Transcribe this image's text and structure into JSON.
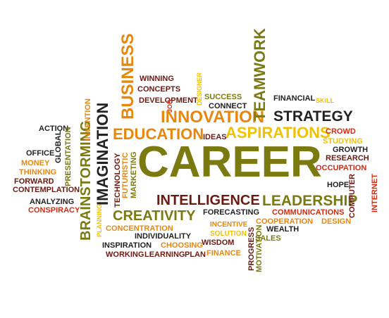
{
  "colors": {
    "olive": "#7a7a10",
    "maroon": "#6b1a12",
    "orange": "#e8870e",
    "red": "#d42a10",
    "dark": "#222222",
    "gold": "#f2c200",
    "lime": "#a7b826",
    "yellowgreen": "#c6cf2e",
    "lightorange": "#f0a030"
  },
  "words": [
    {
      "text": "CAREER",
      "color": "olive"
    },
    {
      "text": "INNOVATION",
      "color": "orange"
    },
    {
      "text": "STRATEGY",
      "color": "dark"
    },
    {
      "text": "EDUCATION",
      "color": "orange"
    },
    {
      "text": "ASPIRATIONS",
      "color": "gold"
    },
    {
      "text": "IDEAS",
      "color": "maroon"
    },
    {
      "text": "LEADERSHIP",
      "color": "olive"
    },
    {
      "text": "INTELLIGENCE",
      "color": "maroon"
    },
    {
      "text": "CREATIVITY",
      "color": "olive"
    },
    {
      "text": "BRAINSTORMING",
      "color": "olive"
    },
    {
      "text": "IMAGINATION",
      "color": "dark"
    },
    {
      "text": "BUSINESS",
      "color": "orange"
    },
    {
      "text": "TEAMWORK",
      "color": "olive"
    },
    {
      "text": "WINNING",
      "color": "maroon"
    },
    {
      "text": "CONCEPTS",
      "color": "maroon"
    },
    {
      "text": "DEVELOPMENT",
      "color": "maroon"
    },
    {
      "text": "SUCCESS",
      "color": "olive"
    },
    {
      "text": "CONNECT",
      "color": "dark"
    },
    {
      "text": "FINANCIAL",
      "color": "dark"
    },
    {
      "text": "SKILL",
      "color": "gold"
    },
    {
      "text": "CROWD",
      "color": "red"
    },
    {
      "text": "STUDYING",
      "color": "gold"
    },
    {
      "text": "GROWTH",
      "color": "dark"
    },
    {
      "text": "RESEARCH",
      "color": "maroon"
    },
    {
      "text": "OCCUPATION",
      "color": "red"
    },
    {
      "text": "HOPE",
      "color": "dark"
    },
    {
      "text": "COMMUNICATIONS",
      "color": "red"
    },
    {
      "text": "COOPERATION",
      "color": "orange"
    },
    {
      "text": "DESIGN",
      "color": "orange"
    },
    {
      "text": "WEALTH",
      "color": "dark"
    },
    {
      "text": "SALES",
      "color": "olive"
    },
    {
      "text": "FORECASTING",
      "color": "dark"
    },
    {
      "text": "INCENTIVE",
      "color": "orange"
    },
    {
      "text": "SOLUTION",
      "color": "gold"
    },
    {
      "text": "WISDOM",
      "color": "maroon"
    },
    {
      "text": "FINANCE",
      "color": "orange"
    },
    {
      "text": "PLAN",
      "color": "maroon"
    },
    {
      "text": "LEARNING",
      "color": "maroon"
    },
    {
      "text": "WORKING",
      "color": "maroon"
    },
    {
      "text": "INSPIRATION",
      "color": "dark"
    },
    {
      "text": "CHOOSING",
      "color": "orange"
    },
    {
      "text": "INDIVIDUALITY",
      "color": "dark"
    },
    {
      "text": "CONCENTRATION",
      "color": "orange"
    },
    {
      "text": "ACTION",
      "color": "dark"
    },
    {
      "text": "OFFICE",
      "color": "dark"
    },
    {
      "text": "MONEY",
      "color": "orange"
    },
    {
      "text": "THINKING",
      "color": "orange"
    },
    {
      "text": "FORWARD",
      "color": "maroon"
    },
    {
      "text": "CONTEMPLATION",
      "color": "maroon"
    },
    {
      "text": "ANALYZING",
      "color": "dark"
    },
    {
      "text": "CONSPIRACY",
      "color": "red"
    },
    {
      "text": "GLOBAL",
      "color": "dark"
    },
    {
      "text": "PRESENTATION",
      "color": "olive"
    },
    {
      "text": "INVENTION",
      "color": "orange"
    },
    {
      "text": "TECHNOLOGY",
      "color": "maroon"
    },
    {
      "text": "FUTURISTIC",
      "color": "orange"
    },
    {
      "text": "MARKETING",
      "color": "olive"
    },
    {
      "text": "PLANNING",
      "color": "gold"
    },
    {
      "text": "JOB",
      "color": "red"
    },
    {
      "text": "DESIGNER",
      "color": "gold"
    },
    {
      "text": "PROGRESS",
      "color": "maroon"
    },
    {
      "text": "MOTIVATION",
      "color": "olive"
    },
    {
      "text": "COMPUTER",
      "color": "maroon"
    },
    {
      "text": "INTERNET",
      "color": "red"
    }
  ]
}
